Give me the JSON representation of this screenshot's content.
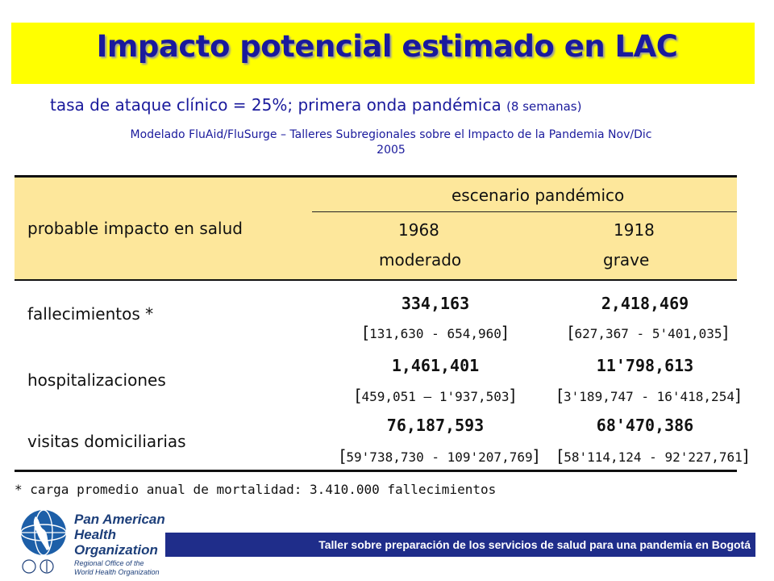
{
  "title": "Impacto potencial estimado en LAC",
  "subtitle": {
    "main": "tasa de ataque clínico = 25%; primera onda pandémica",
    "small": "(8 semanas)"
  },
  "source_line_1": "Modelado FluAid/FluSurge – Talleres Subregionales sobre el Impacto de la Pandemia  Nov/Dic",
  "source_line_2": "2005",
  "table": {
    "row_header": "probable impacto en salud",
    "group_header": "escenario pandémico",
    "columns": [
      {
        "year": "1968",
        "severity": "moderado"
      },
      {
        "year": "1918",
        "severity": "grave"
      }
    ],
    "rows": [
      {
        "label": "fallecimientos *",
        "values": [
          {
            "value": "334,163",
            "range": "131,630 - 654,960"
          },
          {
            "value": "2,418,469",
            "range": "627,367 - 5'401,035"
          }
        ]
      },
      {
        "label": "hospitalizaciones",
        "values": [
          {
            "value": "1,461,401",
            "range": "459,051 – 1'937,503"
          },
          {
            "value": "11'798,613",
            "range": "3'189,747 - 16'418,254"
          }
        ]
      },
      {
        "label": "visitas domiciliarias",
        "values": [
          {
            "value": "76,187,593",
            "range": "59'738,730 - 109'207,769"
          },
          {
            "value": "68'470,386",
            "range": "58'114,124 - 92'227,761"
          }
        ]
      }
    ]
  },
  "footnote": "* carga promedio anual de mortalidad:  3.410.000 fallecimientos",
  "logo": {
    "line1": "Pan American",
    "line2": "Health",
    "line3": "Organization",
    "sub1": "Regional Office of the",
    "sub2": "World Health Organization"
  },
  "footer": "Taller sobre preparación de los servicios de salud para una pandemia en Bogotá",
  "colors": {
    "title_band": "#ffff00",
    "title_text": "#1a1a9c",
    "header_fill": "#fde79b",
    "footer_bar": "#1f2d8a"
  }
}
